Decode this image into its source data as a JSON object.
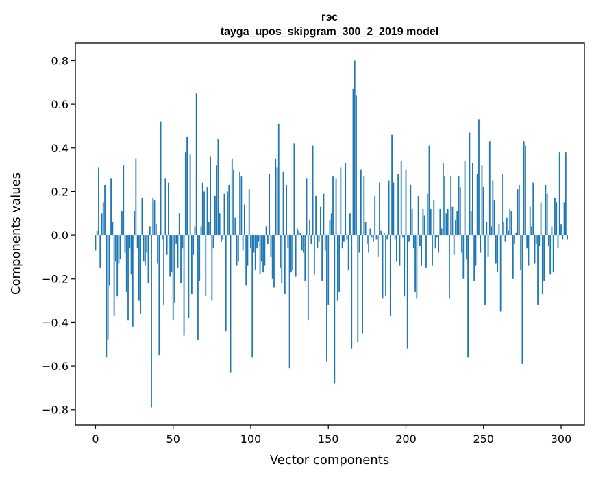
{
  "chart_data": {
    "type": "bar",
    "title": "гэс",
    "subtitle": "tayga_upos_skipgram_300_2_2019 model",
    "xlabel": "Vector components",
    "ylabel": "Components values",
    "xlim": [
      -13,
      315
    ],
    "ylim": [
      -0.87,
      0.88
    ],
    "xticks": [
      0,
      50,
      100,
      150,
      200,
      250,
      300
    ],
    "yticks": [
      -0.8,
      -0.6,
      -0.4,
      -0.2,
      0.0,
      0.2,
      0.4,
      0.6,
      0.8
    ],
    "ytick_labels": [
      "−0.8",
      "−0.6",
      "−0.4",
      "−0.2",
      "0.0",
      "0.2",
      "0.4",
      "0.6",
      "0.8"
    ],
    "bar_color": "#1f77b4",
    "grid": false,
    "values": [
      -0.07,
      0.02,
      0.31,
      -0.15,
      0.1,
      0.15,
      0.23,
      -0.56,
      -0.48,
      -0.23,
      0.26,
      0.06,
      -0.37,
      -0.12,
      -0.28,
      -0.13,
      -0.11,
      0.11,
      0.32,
      -0.08,
      -0.26,
      -0.39,
      -0.06,
      -0.18,
      -0.42,
      0.11,
      0.35,
      -0.06,
      -0.3,
      -0.36,
      0.17,
      -0.12,
      -0.14,
      -0.08,
      -0.22,
      0.04,
      -0.79,
      0.17,
      0.16,
      0.05,
      -0.13,
      -0.55,
      0.52,
      -0.02,
      -0.32,
      0.26,
      -0.09,
      0.24,
      -0.19,
      -0.17,
      -0.39,
      -0.31,
      -0.04,
      -0.15,
      0.1,
      -0.22,
      -0.06,
      -0.46,
      0.38,
      0.45,
      -0.38,
      0.37,
      -0.27,
      -0.09,
      0.04,
      0.65,
      -0.48,
      -0.21,
      0.04,
      0.24,
      0.2,
      -0.28,
      0.22,
      0.06,
      0.36,
      -0.3,
      -0.06,
      0.18,
      0.32,
      0.44,
      0.1,
      -0.03,
      -0.02,
      0.19,
      -0.44,
      0.2,
      0.23,
      -0.63,
      0.35,
      0.3,
      0.08,
      -0.14,
      -0.12,
      0.29,
      0.27,
      -0.07,
      0.14,
      -0.23,
      -0.14,
      0.21,
      -0.06,
      -0.56,
      -0.08,
      -0.16,
      -0.06,
      -0.03,
      -0.18,
      -0.12,
      -0.17,
      -0.14,
      0.04,
      -0.04,
      0.28,
      -0.1,
      -0.2,
      -0.24,
      0.35,
      0.31,
      0.51,
      -0.15,
      -0.22,
      0.29,
      -0.27,
      0.23,
      -0.06,
      -0.61,
      -0.17,
      -0.16,
      0.42,
      -0.19,
      0.03,
      0.02,
      0.01,
      -0.07,
      -0.08,
      -0.21,
      0.26,
      -0.39,
      0.07,
      -0.04,
      0.41,
      -0.18,
      0.18,
      -0.06,
      -0.03,
      0.13,
      -0.21,
      0.19,
      -0.07,
      -0.58,
      -0.32,
      0.07,
      0.1,
      0.27,
      -0.68,
      0.26,
      -0.3,
      -0.26,
      0.31,
      -0.06,
      -0.03,
      0.33,
      -0.02,
      -0.16,
      0.1,
      -0.52,
      0.67,
      0.8,
      0.64,
      -0.49,
      -0.08,
      0.3,
      -0.45,
      0.27,
      0.06,
      -0.04,
      -0.08,
      0.03,
      -0.01,
      -0.03,
      0.18,
      -0.02,
      -0.1,
      0.24,
      0.02,
      -0.29,
      0.01,
      -0.28,
      -0.02,
      0.25,
      -0.37,
      0.46,
      0.24,
      -0.02,
      -0.12,
      0.28,
      -0.14,
      0.34,
      -0.01,
      -0.28,
      0.3,
      -0.52,
      -0.03,
      0.23,
      0.12,
      -0.06,
      -0.26,
      -0.29,
      0.18,
      -0.05,
      -0.14,
      0.12,
      0.09,
      -0.15,
      0.19,
      0.41,
      0.12,
      -0.14,
      0.16,
      -0.06,
      -0.01,
      -0.08,
      0.12,
      0.03,
      0.33,
      0.27,
      0.1,
      0.12,
      -0.29,
      0.27,
      0.13,
      -0.09,
      0.07,
      0.11,
      0.27,
      0.22,
      -0.08,
      -0.2,
      0.34,
      -0.11,
      -0.56,
      0.47,
      0.11,
      0.33,
      -0.21,
      -0.14,
      0.28,
      0.53,
      -0.08,
      0.32,
      0.22,
      -0.32,
      0.06,
      -0.1,
      0.43,
      0.04,
      0.25,
      0.16,
      -0.13,
      -0.17,
      0.05,
      -0.35,
      0.28,
      0.06,
      -0.03,
      0.08,
      0.02,
      0.12,
      0.11,
      -0.2,
      -0.04,
      0.01,
      0.21,
      0.23,
      -0.16,
      -0.59,
      0.43,
      0.41,
      -0.06,
      -0.14,
      0.13,
      0.04,
      0.24,
      -0.13,
      -0.04,
      -0.32,
      -0.05,
      0.15,
      -0.27,
      -0.21,
      0.23,
      0.19,
      -0.05,
      -0.18,
      0.04,
      -0.17,
      0.17,
      0.15,
      -0.06,
      0.38,
      0.05,
      -0.02,
      0.15,
      0.38,
      -0.02
    ]
  }
}
